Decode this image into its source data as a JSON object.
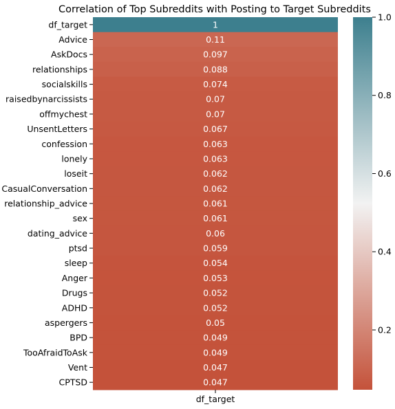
{
  "chart_data": {
    "type": "heatmap",
    "title": "Correlation of Top Subreddits with Posting to Target Subreddits",
    "columns": [
      "df_target"
    ],
    "rows": [
      "df_target",
      "Advice",
      "AskDocs",
      "relationships",
      "socialskills",
      "raisedbynarcissists",
      "offmychest",
      "UnsentLetters",
      "confession",
      "lonely",
      "loseit",
      "CasualConversation",
      "relationship_advice",
      "sex",
      "dating_advice",
      "ptsd",
      "sleep",
      "Anger",
      "Drugs",
      "ADHD",
      "aspergers",
      "BPD",
      "TooAfraidToAsk",
      "Vent",
      "CPTSD"
    ],
    "values": [
      1,
      0.11,
      0.097,
      0.088,
      0.074,
      0.07,
      0.07,
      0.067,
      0.063,
      0.063,
      0.062,
      0.062,
      0.061,
      0.061,
      0.06,
      0.059,
      0.054,
      0.053,
      0.052,
      0.052,
      0.05,
      0.049,
      0.049,
      0.047,
      0.047
    ],
    "value_labels": [
      "1",
      "0.11",
      "0.097",
      "0.088",
      "0.074",
      "0.07",
      "0.07",
      "0.067",
      "0.063",
      "0.063",
      "0.062",
      "0.062",
      "0.061",
      "0.061",
      "0.06",
      "0.059",
      "0.054",
      "0.053",
      "0.052",
      "0.052",
      "0.05",
      "0.049",
      "0.049",
      "0.047",
      "0.047"
    ],
    "colorbar": {
      "range": [
        0.047,
        1.0
      ],
      "ticks": [
        1.0,
        0.8,
        0.6,
        0.4,
        0.2
      ],
      "tick_labels": [
        "1.0",
        "0.8",
        "0.6",
        "0.4",
        "0.2"
      ],
      "colormap": "diverging",
      "low_color": "#c4523a",
      "mid_color": "#f2f2f2",
      "high_color": "#3d7f8e"
    },
    "grid": false,
    "legend": "colorbar-right"
  }
}
